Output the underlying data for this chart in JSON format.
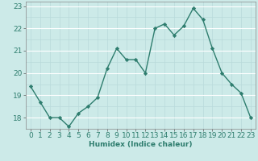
{
  "x": [
    0,
    1,
    2,
    3,
    4,
    5,
    6,
    7,
    8,
    9,
    10,
    11,
    12,
    13,
    14,
    15,
    16,
    17,
    18,
    19,
    20,
    21,
    22,
    23
  ],
  "y": [
    19.4,
    18.7,
    18.0,
    18.0,
    17.6,
    18.2,
    18.5,
    18.9,
    20.2,
    21.1,
    20.6,
    20.6,
    20.0,
    22.0,
    22.2,
    21.7,
    22.1,
    22.9,
    22.4,
    21.1,
    20.0,
    19.5,
    19.1,
    18.0
  ],
  "line_color": "#2e7d6e",
  "marker": "D",
  "marker_size": 2.2,
  "bg_color": "#cceae8",
  "grid_major_color": "#ffffff",
  "grid_minor_color": "#b8dada",
  "xlabel": "Humidex (Indice chaleur)",
  "xlim": [
    -0.5,
    23.5
  ],
  "ylim": [
    17.5,
    23.2
  ],
  "yticks": [
    18,
    19,
    20,
    21,
    22,
    23
  ],
  "xticks": [
    0,
    1,
    2,
    3,
    4,
    5,
    6,
    7,
    8,
    9,
    10,
    11,
    12,
    13,
    14,
    15,
    16,
    17,
    18,
    19,
    20,
    21,
    22,
    23
  ],
  "xlabel_fontsize": 6.5,
  "tick_fontsize": 6.5,
  "line_width": 1.0
}
